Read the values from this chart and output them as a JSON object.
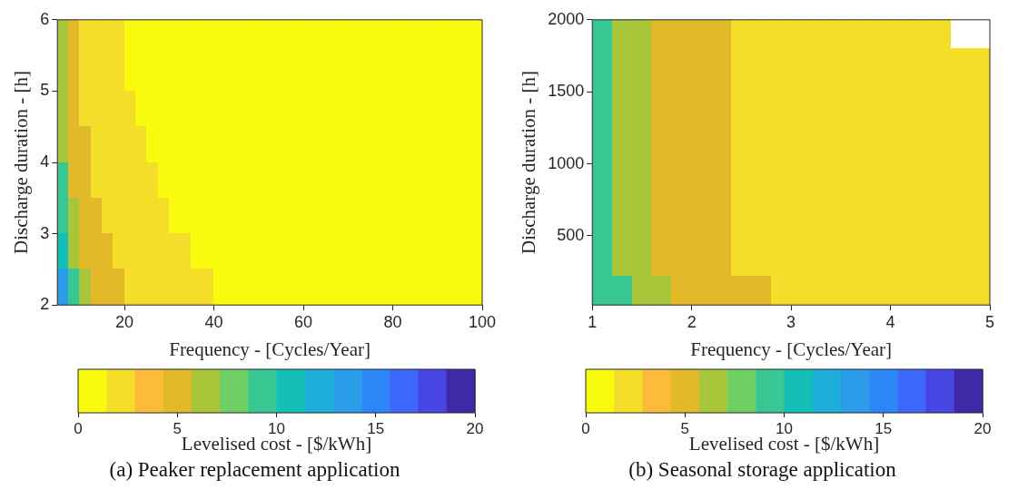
{
  "chart_data": [
    {
      "type": "scatter",
      "marker": "square",
      "title": "(a) Peaker replacement application",
      "xlabel": "Frequency - [Cycles/Year]",
      "ylabel": "Discharge duration - [h]",
      "clabel": "Levelised cost - [$/kWh]",
      "x": [
        6.25,
        8.75,
        11.25,
        13.75,
        16.25,
        18.75,
        21.25,
        23.75,
        26.25,
        28.75,
        31.25,
        33.75,
        36.25,
        38.75,
        41.25,
        43.75,
        46.25,
        48.75,
        51.25,
        53.75,
        56.25,
        58.75,
        61.25,
        63.75,
        66.25,
        68.75,
        71.25,
        73.75,
        76.25,
        78.75,
        81.25,
        83.75,
        86.25,
        88.75,
        91.25,
        93.75,
        96.25,
        98.75
      ],
      "xlim": [
        5,
        100
      ],
      "xticks": [
        20,
        40,
        60,
        80,
        100
      ],
      "ylim": [
        2,
        6
      ],
      "yticks": [
        2,
        3,
        4,
        5,
        6
      ],
      "clim": [
        0,
        20
      ],
      "cticks": [
        0,
        5,
        10,
        15,
        20
      ],
      "colors": [
        "#f9fb0e",
        "#f5de2a",
        "#fdbb3b",
        "#e1b929",
        "#a9c539",
        "#6ecf65",
        "#38c792",
        "#14bfb6",
        "#1cadd9",
        "#2a9ce8",
        "#2d86f5",
        "#3d66fb",
        "#4846e2",
        "#3e2aa6"
      ],
      "series": [
        {
          "values": [
            5.75,
            5.75,
            5.75,
            5.75,
            5.75,
            5.75,
            5.75,
            5.75,
            5.75,
            5.75,
            5.75,
            5.75,
            5.75,
            5.75,
            5.75,
            5.75,
            5.75,
            5.75,
            5.75,
            5.75,
            5.75,
            5.75,
            5.75,
            5.75,
            5.75,
            5.75,
            5.75,
            5.75,
            5.75,
            5.75,
            5.75,
            5.75,
            5.75,
            5.75,
            5.75,
            5.75,
            5.75,
            5.75
          ],
          "colors": [
            "#a9c539",
            "#e1b929",
            "#f5de2a",
            "#f5de2a",
            "#f5de2a",
            "#f5de2a",
            "#f9fb0e",
            "#f9fb0e",
            "#f9fb0e",
            "#f9fb0e",
            "#f9fb0e",
            "#f9fb0e",
            "#f9fb0e",
            "#f9fb0e",
            "#f9fb0e",
            "#f9fb0e",
            "#f9fb0e",
            "#f9fb0e",
            "#f9fb0e",
            "#f9fb0e",
            "#f9fb0e",
            "#f9fb0e",
            "#f9fb0e",
            "#f9fb0e",
            "#f9fb0e",
            "#f9fb0e",
            "#f9fb0e",
            "#f9fb0e",
            "#f9fb0e",
            "#f9fb0e",
            "#f9fb0e",
            "#f9fb0e",
            "#f9fb0e",
            "#f9fb0e",
            "#f9fb0e",
            "#f9fb0e",
            "#f9fb0e",
            "#f9fb0e"
          ]
        },
        {
          "values": [
            5.25,
            5.25,
            5.25,
            5.25,
            5.25,
            5.25,
            5.25,
            5.25,
            5.25,
            5.25,
            5.25,
            5.25,
            5.25,
            5.25,
            5.25,
            5.25,
            5.25,
            5.25,
            5.25,
            5.25,
            5.25,
            5.25,
            5.25,
            5.25,
            5.25,
            5.25,
            5.25,
            5.25,
            5.25,
            5.25,
            5.25,
            5.25,
            5.25,
            5.25,
            5.25,
            5.25,
            5.25,
            5.25
          ],
          "colors": [
            "#a9c539",
            "#e1b929",
            "#f5de2a",
            "#f5de2a",
            "#f5de2a",
            "#f5de2a",
            "#f9fb0e",
            "#f9fb0e",
            "#f9fb0e",
            "#f9fb0e",
            "#f9fb0e",
            "#f9fb0e",
            "#f9fb0e",
            "#f9fb0e",
            "#f9fb0e",
            "#f9fb0e",
            "#f9fb0e",
            "#f9fb0e",
            "#f9fb0e",
            "#f9fb0e",
            "#f9fb0e",
            "#f9fb0e",
            "#f9fb0e",
            "#f9fb0e",
            "#f9fb0e",
            "#f9fb0e",
            "#f9fb0e",
            "#f9fb0e",
            "#f9fb0e",
            "#f9fb0e",
            "#f9fb0e",
            "#f9fb0e",
            "#f9fb0e",
            "#f9fb0e",
            "#f9fb0e",
            "#f9fb0e",
            "#f9fb0e",
            "#f9fb0e"
          ]
        },
        {
          "values": [
            4.75,
            4.75,
            4.75,
            4.75,
            4.75,
            4.75,
            4.75,
            4.75,
            4.75,
            4.75,
            4.75,
            4.75,
            4.75,
            4.75,
            4.75,
            4.75,
            4.75,
            4.75,
            4.75,
            4.75,
            4.75,
            4.75,
            4.75,
            4.75,
            4.75,
            4.75,
            4.75,
            4.75,
            4.75,
            4.75,
            4.75,
            4.75,
            4.75,
            4.75,
            4.75,
            4.75,
            4.75,
            4.75
          ],
          "colors": [
            "#a9c539",
            "#e1b929",
            "#f5de2a",
            "#f5de2a",
            "#f5de2a",
            "#f5de2a",
            "#f5de2a",
            "#f9fb0e",
            "#f9fb0e",
            "#f9fb0e",
            "#f9fb0e",
            "#f9fb0e",
            "#f9fb0e",
            "#f9fb0e",
            "#f9fb0e",
            "#f9fb0e",
            "#f9fb0e",
            "#f9fb0e",
            "#f9fb0e",
            "#f9fb0e",
            "#f9fb0e",
            "#f9fb0e",
            "#f9fb0e",
            "#f9fb0e",
            "#f9fb0e",
            "#f9fb0e",
            "#f9fb0e",
            "#f9fb0e",
            "#f9fb0e",
            "#f9fb0e",
            "#f9fb0e",
            "#f9fb0e",
            "#f9fb0e",
            "#f9fb0e",
            "#f9fb0e",
            "#f9fb0e",
            "#f9fb0e",
            "#f9fb0e"
          ]
        },
        {
          "values": [
            4.25,
            4.25,
            4.25,
            4.25,
            4.25,
            4.25,
            4.25,
            4.25,
            4.25,
            4.25,
            4.25,
            4.25,
            4.25,
            4.25,
            4.25,
            4.25,
            4.25,
            4.25,
            4.25,
            4.25,
            4.25,
            4.25,
            4.25,
            4.25,
            4.25,
            4.25,
            4.25,
            4.25,
            4.25,
            4.25,
            4.25,
            4.25,
            4.25,
            4.25,
            4.25,
            4.25,
            4.25,
            4.25
          ],
          "colors": [
            "#a9c539",
            "#e1b929",
            "#e1b929",
            "#f5de2a",
            "#f5de2a",
            "#f5de2a",
            "#f5de2a",
            "#f5de2a",
            "#f9fb0e",
            "#f9fb0e",
            "#f9fb0e",
            "#f9fb0e",
            "#f9fb0e",
            "#f9fb0e",
            "#f9fb0e",
            "#f9fb0e",
            "#f9fb0e",
            "#f9fb0e",
            "#f9fb0e",
            "#f9fb0e",
            "#f9fb0e",
            "#f9fb0e",
            "#f9fb0e",
            "#f9fb0e",
            "#f9fb0e",
            "#f9fb0e",
            "#f9fb0e",
            "#f9fb0e",
            "#f9fb0e",
            "#f9fb0e",
            "#f9fb0e",
            "#f9fb0e",
            "#f9fb0e",
            "#f9fb0e",
            "#f9fb0e",
            "#f9fb0e",
            "#f9fb0e",
            "#f9fb0e"
          ]
        },
        {
          "values": [
            3.75,
            3.75,
            3.75,
            3.75,
            3.75,
            3.75,
            3.75,
            3.75,
            3.75,
            3.75,
            3.75,
            3.75,
            3.75,
            3.75,
            3.75,
            3.75,
            3.75,
            3.75,
            3.75,
            3.75,
            3.75,
            3.75,
            3.75,
            3.75,
            3.75,
            3.75,
            3.75,
            3.75,
            3.75,
            3.75,
            3.75,
            3.75,
            3.75,
            3.75,
            3.75,
            3.75,
            3.75,
            3.75
          ],
          "colors": [
            "#38c792",
            "#e1b929",
            "#e1b929",
            "#f5de2a",
            "#f5de2a",
            "#f5de2a",
            "#f5de2a",
            "#f5de2a",
            "#f5de2a",
            "#f9fb0e",
            "#f9fb0e",
            "#f9fb0e",
            "#f9fb0e",
            "#f9fb0e",
            "#f9fb0e",
            "#f9fb0e",
            "#f9fb0e",
            "#f9fb0e",
            "#f9fb0e",
            "#f9fb0e",
            "#f9fb0e",
            "#f9fb0e",
            "#f9fb0e",
            "#f9fb0e",
            "#f9fb0e",
            "#f9fb0e",
            "#f9fb0e",
            "#f9fb0e",
            "#f9fb0e",
            "#f9fb0e",
            "#f9fb0e",
            "#f9fb0e",
            "#f9fb0e",
            "#f9fb0e",
            "#f9fb0e",
            "#f9fb0e",
            "#f9fb0e",
            "#f9fb0e"
          ]
        },
        {
          "values": [
            3.25,
            3.25,
            3.25,
            3.25,
            3.25,
            3.25,
            3.25,
            3.25,
            3.25,
            3.25,
            3.25,
            3.25,
            3.25,
            3.25,
            3.25,
            3.25,
            3.25,
            3.25,
            3.25,
            3.25,
            3.25,
            3.25,
            3.25,
            3.25,
            3.25,
            3.25,
            3.25,
            3.25,
            3.25,
            3.25,
            3.25,
            3.25,
            3.25,
            3.25,
            3.25,
            3.25,
            3.25,
            3.25
          ],
          "colors": [
            "#38c792",
            "#a9c539",
            "#e1b929",
            "#e1b929",
            "#f5de2a",
            "#f5de2a",
            "#f5de2a",
            "#f5de2a",
            "#f5de2a",
            "#f5de2a",
            "#f9fb0e",
            "#f9fb0e",
            "#f9fb0e",
            "#f9fb0e",
            "#f9fb0e",
            "#f9fb0e",
            "#f9fb0e",
            "#f9fb0e",
            "#f9fb0e",
            "#f9fb0e",
            "#f9fb0e",
            "#f9fb0e",
            "#f9fb0e",
            "#f9fb0e",
            "#f9fb0e",
            "#f9fb0e",
            "#f9fb0e",
            "#f9fb0e",
            "#f9fb0e",
            "#f9fb0e",
            "#f9fb0e",
            "#f9fb0e",
            "#f9fb0e",
            "#f9fb0e",
            "#f9fb0e",
            "#f9fb0e",
            "#f9fb0e",
            "#f9fb0e"
          ]
        },
        {
          "values": [
            2.75,
            2.75,
            2.75,
            2.75,
            2.75,
            2.75,
            2.75,
            2.75,
            2.75,
            2.75,
            2.75,
            2.75,
            2.75,
            2.75,
            2.75,
            2.75,
            2.75,
            2.75,
            2.75,
            2.75,
            2.75,
            2.75,
            2.75,
            2.75,
            2.75,
            2.75,
            2.75,
            2.75,
            2.75,
            2.75,
            2.75,
            2.75,
            2.75,
            2.75,
            2.75,
            2.75,
            2.75,
            2.75
          ],
          "colors": [
            "#14bfb6",
            "#a9c539",
            "#e1b929",
            "#e1b929",
            "#e1b929",
            "#f5de2a",
            "#f5de2a",
            "#f5de2a",
            "#f5de2a",
            "#f5de2a",
            "#f5de2a",
            "#f5de2a",
            "#f9fb0e",
            "#f9fb0e",
            "#f9fb0e",
            "#f9fb0e",
            "#f9fb0e",
            "#f9fb0e",
            "#f9fb0e",
            "#f9fb0e",
            "#f9fb0e",
            "#f9fb0e",
            "#f9fb0e",
            "#f9fb0e",
            "#f9fb0e",
            "#f9fb0e",
            "#f9fb0e",
            "#f9fb0e",
            "#f9fb0e",
            "#f9fb0e",
            "#f9fb0e",
            "#f9fb0e",
            "#f9fb0e",
            "#f9fb0e",
            "#f9fb0e",
            "#f9fb0e",
            "#f9fb0e",
            "#f9fb0e"
          ]
        },
        {
          "values": [
            2.25,
            2.25,
            2.25,
            2.25,
            2.25,
            2.25,
            2.25,
            2.25,
            2.25,
            2.25,
            2.25,
            2.25,
            2.25,
            2.25,
            2.25,
            2.25,
            2.25,
            2.25,
            2.25,
            2.25,
            2.25,
            2.25,
            2.25,
            2.25,
            2.25,
            2.25,
            2.25,
            2.25,
            2.25,
            2.25,
            2.25,
            2.25,
            2.25,
            2.25,
            2.25,
            2.25,
            2.25,
            2.25
          ],
          "colors": [
            "#2a9ce8",
            "#38c792",
            "#a9c539",
            "#e1b929",
            "#e1b929",
            "#e1b929",
            "#f5de2a",
            "#f5de2a",
            "#f5de2a",
            "#f5de2a",
            "#f5de2a",
            "#f5de2a",
            "#f5de2a",
            "#f5de2a",
            "#f9fb0e",
            "#f9fb0e",
            "#f9fb0e",
            "#f9fb0e",
            "#f9fb0e",
            "#f9fb0e",
            "#f9fb0e",
            "#f9fb0e",
            "#f9fb0e",
            "#f9fb0e",
            "#f9fb0e",
            "#f9fb0e",
            "#f9fb0e",
            "#f9fb0e",
            "#f9fb0e",
            "#f9fb0e",
            "#f9fb0e",
            "#f9fb0e",
            "#f9fb0e",
            "#f9fb0e",
            "#f9fb0e",
            "#f9fb0e",
            "#f9fb0e",
            "#f9fb0e"
          ]
        }
      ]
    },
    {
      "type": "scatter",
      "marker": "square",
      "title": "(b) Seasonal storage application",
      "xlabel": "Frequency - [Cycles/Year]",
      "ylabel": "Discharge duration - [h]",
      "clabel": "Levelised cost - [$/kWh]",
      "x": [
        1.1,
        1.3,
        1.5,
        1.7,
        1.9,
        2.1,
        2.3,
        2.5,
        2.7,
        2.9,
        3.1,
        3.3,
        3.5,
        3.7,
        3.9,
        4.1,
        4.3,
        4.5,
        4.7,
        4.9
      ],
      "xlim": [
        1,
        5
      ],
      "xticks": [
        1,
        2,
        3,
        4,
        5
      ],
      "ylim": [
        20,
        2000
      ],
      "yticks": [
        500,
        1000,
        1500,
        2000
      ],
      "clim": [
        0,
        20
      ],
      "cticks": [
        0,
        5,
        10,
        15,
        20
      ],
      "colors": [
        "#f9fb0e",
        "#f5de2a",
        "#fdbb3b",
        "#e1b929",
        "#a9c539",
        "#6ecf65",
        "#38c792",
        "#14bfb6",
        "#1cadd9",
        "#2a9ce8",
        "#2d86f5",
        "#3d66fb",
        "#4846e2",
        "#3e2aa6"
      ],
      "series": [
        {
          "x": [
            1.1,
            1.3,
            1.5,
            1.7,
            1.9,
            2.1,
            2.3,
            2.5,
            2.7,
            2.9,
            3.1,
            3.3,
            3.5,
            3.7,
            3.9,
            4.1,
            4.3,
            4.5
          ],
          "values": [
            1901,
            1901,
            1901,
            1901,
            1901,
            1901,
            1901,
            1901,
            1901,
            1901,
            1901,
            1901,
            1901,
            1901,
            1901,
            1901,
            1901,
            1901
          ],
          "colors": [
            "#38c792",
            "#a9c539",
            "#a9c539",
            "#e1b929",
            "#e1b929",
            "#e1b929",
            "#e1b929",
            "#f5de2a",
            "#f5de2a",
            "#f5de2a",
            "#f5de2a",
            "#f5de2a",
            "#f5de2a",
            "#f5de2a",
            "#f5de2a",
            "#f5de2a",
            "#f5de2a",
            "#f5de2a"
          ]
        },
        {
          "values": [
            1703,
            1703,
            1703,
            1703,
            1703,
            1703,
            1703,
            1703,
            1703,
            1703,
            1703,
            1703,
            1703,
            1703,
            1703,
            1703,
            1703,
            1703,
            1703,
            1703
          ],
          "colors": [
            "#38c792",
            "#a9c539",
            "#a9c539",
            "#e1b929",
            "#e1b929",
            "#e1b929",
            "#e1b929",
            "#f5de2a",
            "#f5de2a",
            "#f5de2a",
            "#f5de2a",
            "#f5de2a",
            "#f5de2a",
            "#f5de2a",
            "#f5de2a",
            "#f5de2a",
            "#f5de2a",
            "#f5de2a",
            "#f5de2a",
            "#f5de2a"
          ]
        },
        {
          "values": [
            1505,
            1505,
            1505,
            1505,
            1505,
            1505,
            1505,
            1505,
            1505,
            1505,
            1505,
            1505,
            1505,
            1505,
            1505,
            1505,
            1505,
            1505,
            1505,
            1505
          ],
          "colors": [
            "#38c792",
            "#a9c539",
            "#a9c539",
            "#e1b929",
            "#e1b929",
            "#e1b929",
            "#e1b929",
            "#f5de2a",
            "#f5de2a",
            "#f5de2a",
            "#f5de2a",
            "#f5de2a",
            "#f5de2a",
            "#f5de2a",
            "#f5de2a",
            "#f5de2a",
            "#f5de2a",
            "#f5de2a",
            "#f5de2a",
            "#f5de2a"
          ]
        },
        {
          "values": [
            1307,
            1307,
            1307,
            1307,
            1307,
            1307,
            1307,
            1307,
            1307,
            1307,
            1307,
            1307,
            1307,
            1307,
            1307,
            1307,
            1307,
            1307,
            1307,
            1307
          ],
          "colors": [
            "#38c792",
            "#a9c539",
            "#a9c539",
            "#e1b929",
            "#e1b929",
            "#e1b929",
            "#e1b929",
            "#f5de2a",
            "#f5de2a",
            "#f5de2a",
            "#f5de2a",
            "#f5de2a",
            "#f5de2a",
            "#f5de2a",
            "#f5de2a",
            "#f5de2a",
            "#f5de2a",
            "#f5de2a",
            "#f5de2a",
            "#f5de2a"
          ]
        },
        {
          "values": [
            1109,
            1109,
            1109,
            1109,
            1109,
            1109,
            1109,
            1109,
            1109,
            1109,
            1109,
            1109,
            1109,
            1109,
            1109,
            1109,
            1109,
            1109,
            1109,
            1109
          ],
          "colors": [
            "#38c792",
            "#a9c539",
            "#a9c539",
            "#e1b929",
            "#e1b929",
            "#e1b929",
            "#e1b929",
            "#f5de2a",
            "#f5de2a",
            "#f5de2a",
            "#f5de2a",
            "#f5de2a",
            "#f5de2a",
            "#f5de2a",
            "#f5de2a",
            "#f5de2a",
            "#f5de2a",
            "#f5de2a",
            "#f5de2a",
            "#f5de2a"
          ]
        },
        {
          "values": [
            911,
            911,
            911,
            911,
            911,
            911,
            911,
            911,
            911,
            911,
            911,
            911,
            911,
            911,
            911,
            911,
            911,
            911,
            911,
            911
          ],
          "colors": [
            "#38c792",
            "#a9c539",
            "#a9c539",
            "#e1b929",
            "#e1b929",
            "#e1b929",
            "#e1b929",
            "#f5de2a",
            "#f5de2a",
            "#f5de2a",
            "#f5de2a",
            "#f5de2a",
            "#f5de2a",
            "#f5de2a",
            "#f5de2a",
            "#f5de2a",
            "#f5de2a",
            "#f5de2a",
            "#f5de2a",
            "#f5de2a"
          ]
        },
        {
          "values": [
            713,
            713,
            713,
            713,
            713,
            713,
            713,
            713,
            713,
            713,
            713,
            713,
            713,
            713,
            713,
            713,
            713,
            713,
            713,
            713
          ],
          "colors": [
            "#38c792",
            "#a9c539",
            "#a9c539",
            "#e1b929",
            "#e1b929",
            "#e1b929",
            "#e1b929",
            "#f5de2a",
            "#f5de2a",
            "#f5de2a",
            "#f5de2a",
            "#f5de2a",
            "#f5de2a",
            "#f5de2a",
            "#f5de2a",
            "#f5de2a",
            "#f5de2a",
            "#f5de2a",
            "#f5de2a",
            "#f5de2a"
          ]
        },
        {
          "values": [
            515,
            515,
            515,
            515,
            515,
            515,
            515,
            515,
            515,
            515,
            515,
            515,
            515,
            515,
            515,
            515,
            515,
            515,
            515,
            515
          ],
          "colors": [
            "#38c792",
            "#a9c539",
            "#a9c539",
            "#e1b929",
            "#e1b929",
            "#e1b929",
            "#e1b929",
            "#f5de2a",
            "#f5de2a",
            "#f5de2a",
            "#f5de2a",
            "#f5de2a",
            "#f5de2a",
            "#f5de2a",
            "#f5de2a",
            "#f5de2a",
            "#f5de2a",
            "#f5de2a",
            "#f5de2a",
            "#f5de2a"
          ]
        },
        {
          "values": [
            317,
            317,
            317,
            317,
            317,
            317,
            317,
            317,
            317,
            317,
            317,
            317,
            317,
            317,
            317,
            317,
            317,
            317,
            317,
            317
          ],
          "colors": [
            "#38c792",
            "#a9c539",
            "#a9c539",
            "#e1b929",
            "#e1b929",
            "#e1b929",
            "#e1b929",
            "#f5de2a",
            "#f5de2a",
            "#f5de2a",
            "#f5de2a",
            "#f5de2a",
            "#f5de2a",
            "#f5de2a",
            "#f5de2a",
            "#f5de2a",
            "#f5de2a",
            "#f5de2a",
            "#f5de2a",
            "#f5de2a"
          ]
        },
        {
          "values": [
            119,
            119,
            119,
            119,
            119,
            119,
            119,
            119,
            119,
            119,
            119,
            119,
            119,
            119,
            119,
            119,
            119,
            119,
            119,
            119
          ],
          "colors": [
            "#38c792",
            "#38c792",
            "#a9c539",
            "#a9c539",
            "#e1b929",
            "#e1b929",
            "#e1b929",
            "#e1b929",
            "#e1b929",
            "#f5de2a",
            "#f5de2a",
            "#f5de2a",
            "#f5de2a",
            "#f5de2a",
            "#f5de2a",
            "#f5de2a",
            "#f5de2a",
            "#f5de2a",
            "#f5de2a",
            "#f5de2a"
          ]
        }
      ]
    }
  ]
}
